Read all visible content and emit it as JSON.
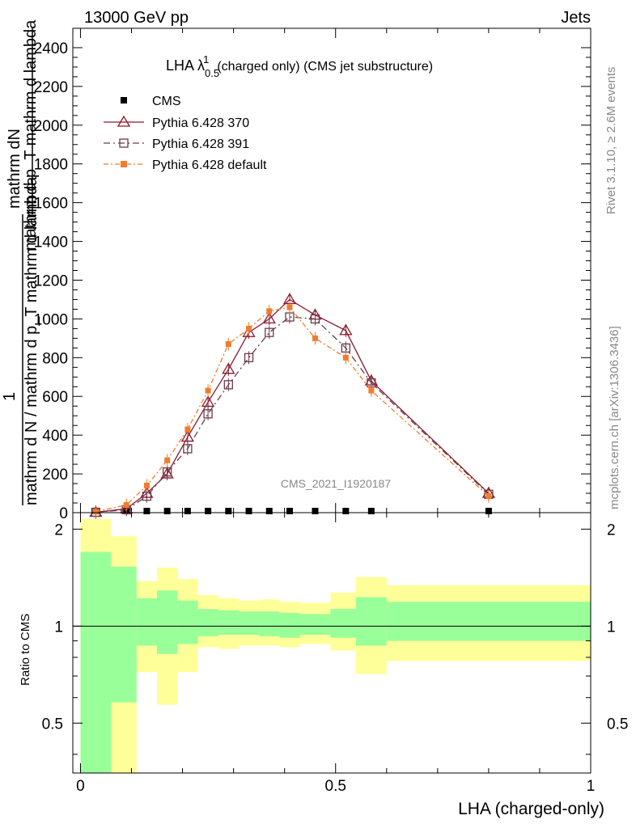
{
  "header": {
    "left": "13000 GeV pp",
    "right": "Jets",
    "rivet": "Rivet 3.1.10, ≥ 2.6M events",
    "mcplots": "mcplots.cern.ch [arXiv:1306.3436]",
    "analysis": "CMS_2021_I1920187"
  },
  "chart_data": [
    {
      "type": "line",
      "title": "LHA λ",
      "title_sup": "1",
      "title_sub": "0.5",
      "title_rest": "(charged only) (CMS jet substructure)",
      "xlabel": "",
      "ylabel_numerator": "mathrm dN",
      "ylabel_denominator": "mathrm d p_T mathrm d lambda",
      "ylabel_overlay": "mathrm d N / mathrm d p_T mathrm d lambda",
      "ylabel_scale": "1",
      "xlim": [
        -0.015,
        1.0
      ],
      "ylim": [
        0,
        2500
      ],
      "yticks": [
        0,
        200,
        400,
        600,
        800,
        1000,
        1200,
        1400,
        1600,
        1800,
        2000,
        2200,
        2400
      ],
      "legend": [
        "CMS",
        "Pythia 6.428 370",
        "Pythia 6.428 391",
        "Pythia 6.428 default"
      ],
      "series": [
        {
          "name": "CMS",
          "color": "#000000",
          "marker": "filled-square",
          "x": [
            0.03,
            0.09,
            0.13,
            0.17,
            0.21,
            0.25,
            0.29,
            0.33,
            0.37,
            0.41,
            0.46,
            0.52,
            0.57,
            0.8
          ],
          "y": [
            0,
            0,
            0,
            0,
            0,
            0,
            0,
            0,
            0,
            0,
            0,
            0,
            0,
            0
          ]
        },
        {
          "name": "Pythia 6.428 370",
          "color": "#8b1a2b",
          "marker": "open-triangle",
          "x": [
            0.03,
            0.09,
            0.13,
            0.17,
            0.21,
            0.25,
            0.29,
            0.33,
            0.37,
            0.41,
            0.46,
            0.52,
            0.57,
            0.8
          ],
          "y": [
            2,
            20,
            100,
            200,
            390,
            570,
            740,
            930,
            1000,
            1100,
            1020,
            940,
            680,
            100
          ]
        },
        {
          "name": "Pythia 6.428 391",
          "color": "#6b3a4a",
          "marker": "open-square",
          "x": [
            0.03,
            0.09,
            0.13,
            0.17,
            0.21,
            0.25,
            0.29,
            0.33,
            0.37,
            0.41,
            0.46,
            0.52,
            0.57,
            0.8
          ],
          "y": [
            2,
            15,
            85,
            210,
            330,
            510,
            660,
            800,
            930,
            1010,
            1000,
            850,
            670,
            95
          ]
        },
        {
          "name": "Pythia 6.428 default",
          "color": "#f07c2e",
          "marker": "filled-square",
          "x": [
            0.03,
            0.09,
            0.13,
            0.17,
            0.21,
            0.25,
            0.29,
            0.33,
            0.37,
            0.41,
            0.46,
            0.52,
            0.57,
            0.8
          ],
          "y": [
            5,
            40,
            140,
            270,
            430,
            630,
            870,
            950,
            1040,
            1060,
            900,
            800,
            630,
            85
          ]
        }
      ]
    },
    {
      "type": "area",
      "title": "",
      "xlabel": "LHA (charged-only)",
      "ylabel": "Ratio to CMS",
      "xlim": [
        -0.015,
        1.0
      ],
      "ylim": [
        0.35,
        2.25
      ],
      "yticks": [
        0.5,
        1,
        2
      ],
      "ytick_labels": [
        "0.5",
        "1",
        "2"
      ],
      "xticks": [
        0,
        0.5,
        1
      ],
      "xtick_labels": [
        "0",
        "0.5",
        "1"
      ],
      "reference_line": 1,
      "bin_edges": [
        0.0,
        0.06,
        0.11,
        0.15,
        0.19,
        0.23,
        0.27,
        0.31,
        0.35,
        0.39,
        0.43,
        0.49,
        0.54,
        0.6,
        1.0
      ],
      "bands": [
        {
          "name": "outer uncertainty",
          "color": "#ffff99",
          "upper": [
            2.15,
            1.9,
            1.38,
            1.52,
            1.4,
            1.25,
            1.22,
            1.2,
            1.21,
            1.19,
            1.18,
            1.27,
            1.42,
            1.34
          ],
          "lower": [
            0.0,
            0.0,
            0.72,
            0.57,
            0.72,
            0.86,
            0.85,
            0.87,
            0.87,
            0.86,
            0.88,
            0.84,
            0.71,
            0.78
          ]
        },
        {
          "name": "inner uncertainty",
          "color": "#99ff99",
          "upper": [
            1.7,
            1.53,
            1.22,
            1.29,
            1.2,
            1.13,
            1.12,
            1.11,
            1.11,
            1.1,
            1.09,
            1.13,
            1.23,
            1.19
          ],
          "lower": [
            0.35,
            0.58,
            0.87,
            0.82,
            0.88,
            0.93,
            0.94,
            0.94,
            0.93,
            0.92,
            0.94,
            0.92,
            0.87,
            0.9
          ]
        }
      ]
    }
  ]
}
